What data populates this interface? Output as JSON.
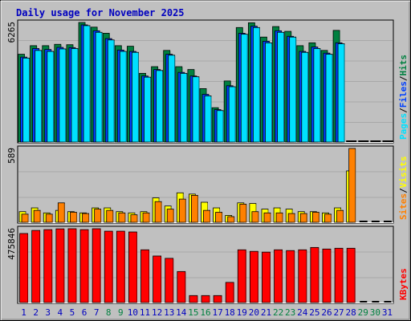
{
  "title": "Daily usage for November 2025",
  "colors": {
    "background": "#c0c0c0",
    "title_text": "#0000c0",
    "hits": "#008040",
    "files": "#0040ff",
    "pages": "#00e0ff",
    "visits": "#ffff00",
    "sites": "#ff8000",
    "kbytes": "#ff0000",
    "weekday_label": "#0000c0",
    "weekend_label": "#008040",
    "future_label": "#008040"
  },
  "chart_data": [
    {
      "type": "bar",
      "name": "hits-files-pages",
      "ymax_label": "6265",
      "ylim": [
        0,
        6265
      ],
      "legend": [
        "Pages",
        "Files",
        "Hits"
      ],
      "categories": [
        "1",
        "2",
        "3",
        "4",
        "5",
        "6",
        "7",
        "8",
        "9",
        "10",
        "11",
        "12",
        "13",
        "14",
        "15",
        "16",
        "17",
        "18",
        "19",
        "20",
        "21",
        "22",
        "23",
        "24",
        "25",
        "26",
        "27",
        "28",
        "29",
        "30",
        "31"
      ],
      "series": [
        {
          "name": "Hits",
          "values": [
            4600,
            5050,
            5050,
            5120,
            5100,
            6265,
            6020,
            5700,
            5050,
            5020,
            3600,
            3950,
            4800,
            3950,
            3800,
            2800,
            1800,
            3200,
            6000,
            6250,
            5500,
            6050,
            5800,
            5050,
            5200,
            4800,
            5850,
            0,
            0,
            0,
            0
          ]
        },
        {
          "name": "Files",
          "values": [
            4450,
            4900,
            4850,
            4960,
            4950,
            6140,
            5830,
            5420,
            4820,
            4750,
            3460,
            3800,
            4600,
            3650,
            3460,
            2500,
            1700,
            2950,
            5700,
            6070,
            5280,
            5830,
            5540,
            4750,
            4980,
            4660,
            5200,
            0,
            0,
            0,
            0
          ]
        },
        {
          "name": "Pages",
          "values": [
            4400,
            4800,
            4750,
            4880,
            4900,
            6100,
            5750,
            5350,
            4750,
            4700,
            3400,
            3750,
            4550,
            3600,
            3420,
            2420,
            1650,
            2900,
            5650,
            6000,
            5200,
            5750,
            5500,
            4700,
            4900,
            4600,
            5150,
            0,
            0,
            0,
            0
          ]
        }
      ]
    },
    {
      "type": "bar",
      "name": "visits-sites",
      "ymax_label": "589",
      "ylim": [
        0,
        589
      ],
      "legend": [
        "Sites",
        "Visits"
      ],
      "categories": [
        "1",
        "2",
        "3",
        "4",
        "5",
        "6",
        "7",
        "8",
        "9",
        "10",
        "11",
        "12",
        "13",
        "14",
        "15",
        "16",
        "17",
        "18",
        "19",
        "20",
        "21",
        "22",
        "23",
        "24",
        "25",
        "26",
        "27",
        "28",
        "29",
        "30",
        "31"
      ],
      "series": [
        {
          "name": "Visits",
          "values": [
            85,
            115,
            75,
            95,
            85,
            75,
            115,
            115,
            85,
            75,
            85,
            195,
            130,
            235,
            225,
            160,
            115,
            55,
            155,
            150,
            105,
            115,
            105,
            85,
            85,
            75,
            115,
            410,
            0,
            0,
            0
          ]
        },
        {
          "name": "Sites",
          "values": [
            65,
            95,
            65,
            155,
            80,
            70,
            105,
            95,
            75,
            60,
            75,
            165,
            105,
            185,
            215,
            95,
            80,
            45,
            145,
            85,
            75,
            75,
            70,
            70,
            80,
            65,
            95,
            589,
            0,
            0,
            0
          ]
        }
      ]
    },
    {
      "type": "bar",
      "name": "kbytes",
      "ymax_label": "475846",
      "ylim": [
        0,
        475846
      ],
      "legend": [
        "KBytes"
      ],
      "categories": [
        "1",
        "2",
        "3",
        "4",
        "5",
        "6",
        "7",
        "8",
        "9",
        "10",
        "11",
        "12",
        "13",
        "14",
        "15",
        "16",
        "17",
        "18",
        "19",
        "20",
        "21",
        "22",
        "23",
        "24",
        "25",
        "26",
        "27",
        "28",
        "29",
        "30",
        "31"
      ],
      "series": [
        {
          "name": "KBytes",
          "values": [
            445000,
            465000,
            470000,
            475000,
            475846,
            470000,
            475846,
            460000,
            460000,
            455000,
            340000,
            300000,
            285000,
            200000,
            45000,
            45000,
            45000,
            130000,
            340000,
            330000,
            325000,
            340000,
            335000,
            340000,
            355000,
            345000,
            350000,
            350000,
            0,
            0,
            0
          ]
        }
      ]
    }
  ],
  "day_label_kinds": [
    "w",
    "w",
    "w",
    "w",
    "w",
    "w",
    "w",
    "e",
    "e",
    "w",
    "w",
    "w",
    "w",
    "w",
    "e",
    "e",
    "w",
    "w",
    "w",
    "w",
    "w",
    "e",
    "e",
    "w",
    "w",
    "w",
    "w",
    "w",
    "f",
    "f",
    "w"
  ]
}
